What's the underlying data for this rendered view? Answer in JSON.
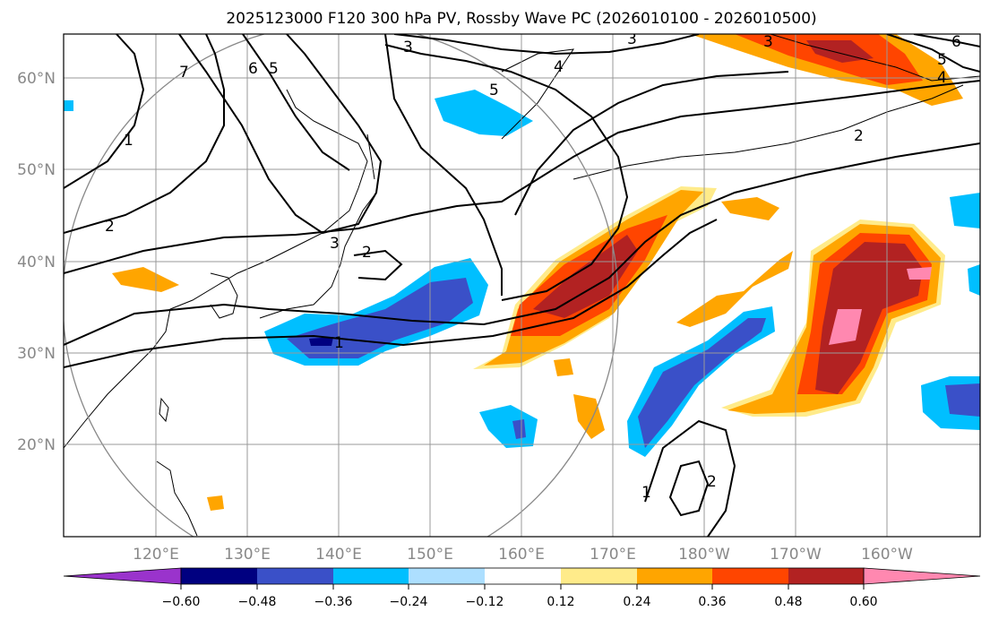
{
  "title": "2025123000 F120 300 hPa PV, Rossby Wave PC (2026010100 - 2026010500)",
  "map": {
    "lon_ticks": [
      "120°E",
      "130°E",
      "140°E",
      "150°E",
      "160°E",
      "170°E",
      "180°W",
      "170°W",
      "160°W"
    ],
    "lat_ticks": [
      "60°N",
      "50°N",
      "40°N",
      "30°N",
      "20°N"
    ],
    "contour_labels": [
      "3",
      "3",
      "4",
      "5",
      "6",
      "5",
      "4",
      "7",
      "6",
      "5",
      "1",
      "2",
      "3",
      "2",
      "1",
      "2",
      "3",
      "1",
      "2"
    ],
    "colors": {
      "positive_anomaly": [
        "#FFEB8A",
        "#FFA500",
        "#FF4500",
        "#B22222",
        "#FF88B0"
      ],
      "negative_anomaly": [
        "#ADDFFF",
        "#00BFFF",
        "#3A50C8",
        "#000080",
        "#9A33CC"
      ]
    }
  },
  "colorbar": {
    "labels": [
      "−0.60",
      "−0.48",
      "−0.36",
      "−0.24",
      "−0.12",
      "0.12",
      "0.24",
      "0.36",
      "0.48",
      "0.60"
    ],
    "colors": [
      "#9A33CC",
      "#000080",
      "#3A50C8",
      "#00BFFF",
      "#ADDFFF",
      "#FFFFFF",
      "#FFEB8A",
      "#FFA500",
      "#FF4500",
      "#B22222",
      "#FF88B0"
    ]
  }
}
